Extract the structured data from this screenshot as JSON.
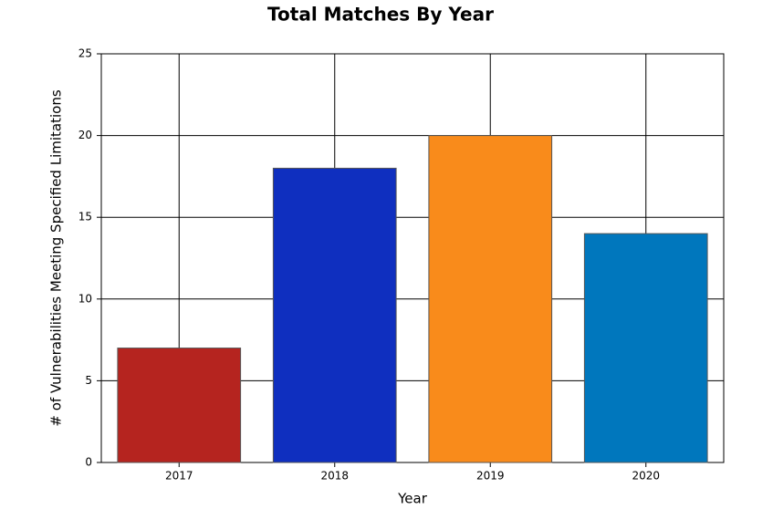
{
  "chart_data": {
    "type": "bar",
    "title": "Total Matches By Year",
    "x_label": "Year",
    "y_label": "# of Vulnerabilities Meeting Specified Limitations",
    "categories": [
      "2017",
      "2018",
      "2019",
      "2020"
    ],
    "values": [
      7,
      18,
      20,
      14
    ],
    "colors": [
      "#b5241f",
      "#0f2fbf",
      "#f98b1b",
      "#0077bd"
    ],
    "ylim": [
      0,
      25
    ],
    "yticks": [
      0,
      5,
      10,
      15,
      20,
      25
    ],
    "grid": true
  }
}
